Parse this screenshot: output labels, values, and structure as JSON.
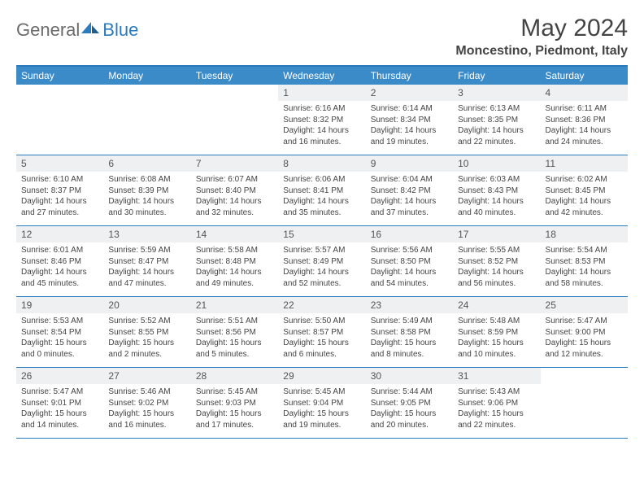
{
  "brand": {
    "name_a": "General",
    "name_b": "Blue"
  },
  "title": "May 2024",
  "location": "Moncestino, Piedmont, Italy",
  "colors": {
    "header_bar": "#3b8bc9",
    "rule": "#2b7bbf",
    "daynum_bg": "#eef0f2",
    "text": "#444444"
  },
  "days_of_week": [
    "Sunday",
    "Monday",
    "Tuesday",
    "Wednesday",
    "Thursday",
    "Friday",
    "Saturday"
  ],
  "weeks": [
    [
      {
        "n": "",
        "lines": []
      },
      {
        "n": "",
        "lines": []
      },
      {
        "n": "",
        "lines": []
      },
      {
        "n": "1",
        "lines": [
          "Sunrise: 6:16 AM",
          "Sunset: 8:32 PM",
          "Daylight: 14 hours",
          "and 16 minutes."
        ]
      },
      {
        "n": "2",
        "lines": [
          "Sunrise: 6:14 AM",
          "Sunset: 8:34 PM",
          "Daylight: 14 hours",
          "and 19 minutes."
        ]
      },
      {
        "n": "3",
        "lines": [
          "Sunrise: 6:13 AM",
          "Sunset: 8:35 PM",
          "Daylight: 14 hours",
          "and 22 minutes."
        ]
      },
      {
        "n": "4",
        "lines": [
          "Sunrise: 6:11 AM",
          "Sunset: 8:36 PM",
          "Daylight: 14 hours",
          "and 24 minutes."
        ]
      }
    ],
    [
      {
        "n": "5",
        "lines": [
          "Sunrise: 6:10 AM",
          "Sunset: 8:37 PM",
          "Daylight: 14 hours",
          "and 27 minutes."
        ]
      },
      {
        "n": "6",
        "lines": [
          "Sunrise: 6:08 AM",
          "Sunset: 8:39 PM",
          "Daylight: 14 hours",
          "and 30 minutes."
        ]
      },
      {
        "n": "7",
        "lines": [
          "Sunrise: 6:07 AM",
          "Sunset: 8:40 PM",
          "Daylight: 14 hours",
          "and 32 minutes."
        ]
      },
      {
        "n": "8",
        "lines": [
          "Sunrise: 6:06 AM",
          "Sunset: 8:41 PM",
          "Daylight: 14 hours",
          "and 35 minutes."
        ]
      },
      {
        "n": "9",
        "lines": [
          "Sunrise: 6:04 AM",
          "Sunset: 8:42 PM",
          "Daylight: 14 hours",
          "and 37 minutes."
        ]
      },
      {
        "n": "10",
        "lines": [
          "Sunrise: 6:03 AM",
          "Sunset: 8:43 PM",
          "Daylight: 14 hours",
          "and 40 minutes."
        ]
      },
      {
        "n": "11",
        "lines": [
          "Sunrise: 6:02 AM",
          "Sunset: 8:45 PM",
          "Daylight: 14 hours",
          "and 42 minutes."
        ]
      }
    ],
    [
      {
        "n": "12",
        "lines": [
          "Sunrise: 6:01 AM",
          "Sunset: 8:46 PM",
          "Daylight: 14 hours",
          "and 45 minutes."
        ]
      },
      {
        "n": "13",
        "lines": [
          "Sunrise: 5:59 AM",
          "Sunset: 8:47 PM",
          "Daylight: 14 hours",
          "and 47 minutes."
        ]
      },
      {
        "n": "14",
        "lines": [
          "Sunrise: 5:58 AM",
          "Sunset: 8:48 PM",
          "Daylight: 14 hours",
          "and 49 minutes."
        ]
      },
      {
        "n": "15",
        "lines": [
          "Sunrise: 5:57 AM",
          "Sunset: 8:49 PM",
          "Daylight: 14 hours",
          "and 52 minutes."
        ]
      },
      {
        "n": "16",
        "lines": [
          "Sunrise: 5:56 AM",
          "Sunset: 8:50 PM",
          "Daylight: 14 hours",
          "and 54 minutes."
        ]
      },
      {
        "n": "17",
        "lines": [
          "Sunrise: 5:55 AM",
          "Sunset: 8:52 PM",
          "Daylight: 14 hours",
          "and 56 minutes."
        ]
      },
      {
        "n": "18",
        "lines": [
          "Sunrise: 5:54 AM",
          "Sunset: 8:53 PM",
          "Daylight: 14 hours",
          "and 58 minutes."
        ]
      }
    ],
    [
      {
        "n": "19",
        "lines": [
          "Sunrise: 5:53 AM",
          "Sunset: 8:54 PM",
          "Daylight: 15 hours",
          "and 0 minutes."
        ]
      },
      {
        "n": "20",
        "lines": [
          "Sunrise: 5:52 AM",
          "Sunset: 8:55 PM",
          "Daylight: 15 hours",
          "and 2 minutes."
        ]
      },
      {
        "n": "21",
        "lines": [
          "Sunrise: 5:51 AM",
          "Sunset: 8:56 PM",
          "Daylight: 15 hours",
          "and 5 minutes."
        ]
      },
      {
        "n": "22",
        "lines": [
          "Sunrise: 5:50 AM",
          "Sunset: 8:57 PM",
          "Daylight: 15 hours",
          "and 6 minutes."
        ]
      },
      {
        "n": "23",
        "lines": [
          "Sunrise: 5:49 AM",
          "Sunset: 8:58 PM",
          "Daylight: 15 hours",
          "and 8 minutes."
        ]
      },
      {
        "n": "24",
        "lines": [
          "Sunrise: 5:48 AM",
          "Sunset: 8:59 PM",
          "Daylight: 15 hours",
          "and 10 minutes."
        ]
      },
      {
        "n": "25",
        "lines": [
          "Sunrise: 5:47 AM",
          "Sunset: 9:00 PM",
          "Daylight: 15 hours",
          "and 12 minutes."
        ]
      }
    ],
    [
      {
        "n": "26",
        "lines": [
          "Sunrise: 5:47 AM",
          "Sunset: 9:01 PM",
          "Daylight: 15 hours",
          "and 14 minutes."
        ]
      },
      {
        "n": "27",
        "lines": [
          "Sunrise: 5:46 AM",
          "Sunset: 9:02 PM",
          "Daylight: 15 hours",
          "and 16 minutes."
        ]
      },
      {
        "n": "28",
        "lines": [
          "Sunrise: 5:45 AM",
          "Sunset: 9:03 PM",
          "Daylight: 15 hours",
          "and 17 minutes."
        ]
      },
      {
        "n": "29",
        "lines": [
          "Sunrise: 5:45 AM",
          "Sunset: 9:04 PM",
          "Daylight: 15 hours",
          "and 19 minutes."
        ]
      },
      {
        "n": "30",
        "lines": [
          "Sunrise: 5:44 AM",
          "Sunset: 9:05 PM",
          "Daylight: 15 hours",
          "and 20 minutes."
        ]
      },
      {
        "n": "31",
        "lines": [
          "Sunrise: 5:43 AM",
          "Sunset: 9:06 PM",
          "Daylight: 15 hours",
          "and 22 minutes."
        ]
      },
      {
        "n": "",
        "lines": []
      }
    ]
  ]
}
